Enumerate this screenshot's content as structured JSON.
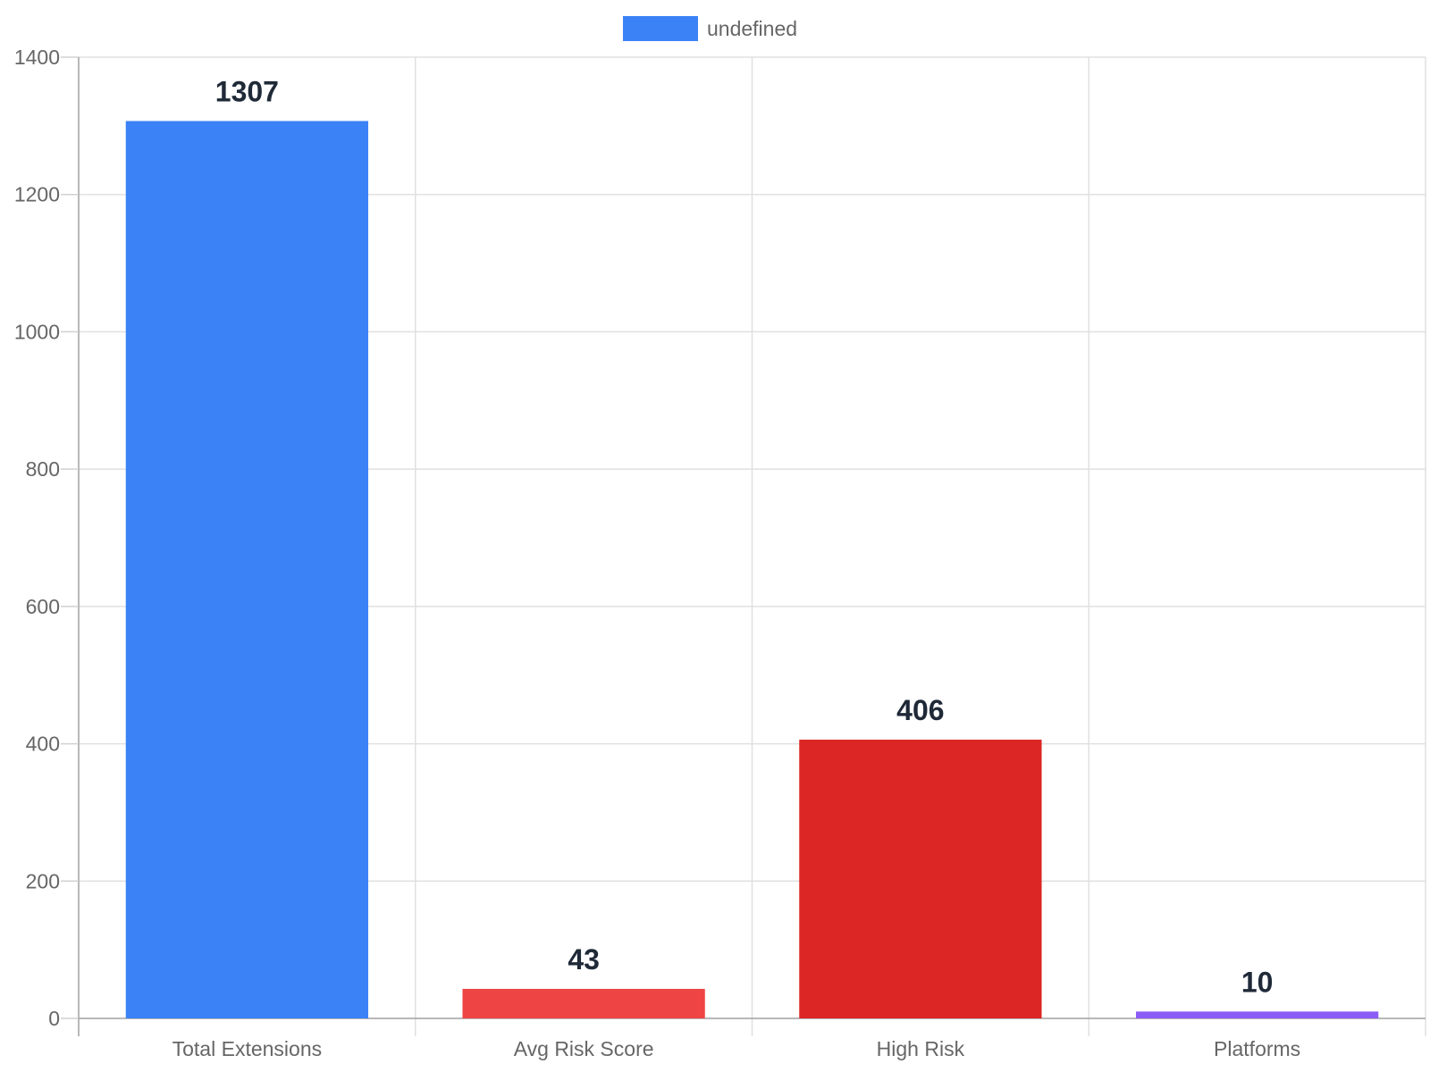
{
  "chart_data": {
    "type": "bar",
    "categories": [
      "Total Extensions",
      "Avg Risk Score",
      "High Risk",
      "Platforms"
    ],
    "series": [
      {
        "name": "undefined",
        "values": [
          1307,
          43,
          406,
          10
        ],
        "colors": [
          "#3b82f6",
          "#ef4444",
          "#dc2626",
          "#8b5cf6"
        ]
      }
    ],
    "data_labels": [
      "1307",
      "43",
      "406",
      "10"
    ],
    "legend": {
      "label": "undefined",
      "color": "#3b82f6",
      "position": "top-center"
    },
    "ylim": [
      0,
      1400
    ],
    "yticks": [
      0,
      200,
      400,
      600,
      800,
      1000,
      1200,
      1400
    ],
    "grid": true,
    "title": "",
    "xlabel": "",
    "ylabel": ""
  }
}
